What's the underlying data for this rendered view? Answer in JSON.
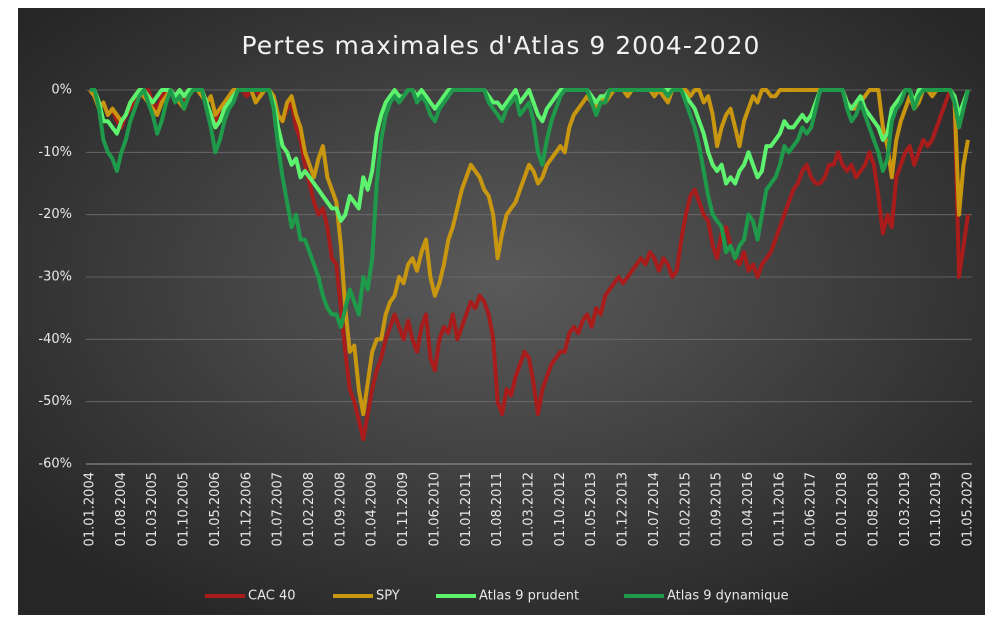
{
  "chart_data": {
    "type": "line",
    "title": "Pertes maximales d'Atlas 9 2004-2020",
    "categories": [
      "01.01.2004",
      null,
      null,
      null,
      null,
      null,
      null,
      "01.08.2004",
      null,
      null,
      null,
      null,
      null,
      null,
      "01.03.2005",
      null,
      null,
      null,
      null,
      null,
      null,
      "01.10.2005",
      null,
      null,
      null,
      null,
      null,
      null,
      "01.05.2006",
      null,
      null,
      null,
      null,
      null,
      null,
      "01.12.2006",
      null,
      null,
      null,
      null,
      null,
      null,
      "01.07.2007",
      null,
      null,
      null,
      null,
      null,
      null,
      "01.02.2008",
      null,
      null,
      null,
      null,
      null,
      null,
      "01.09.2008",
      null,
      null,
      null,
      null,
      null,
      null,
      "01.04.2009",
      null,
      null,
      null,
      null,
      null,
      null,
      "01.11.2009",
      null,
      null,
      null,
      null,
      null,
      null,
      "01.06.2010",
      null,
      null,
      null,
      null,
      null,
      null,
      "01.01.2011",
      null,
      null,
      null,
      null,
      null,
      null,
      "01.08.2011",
      null,
      null,
      null,
      null,
      null,
      null,
      "01.03.2012",
      null,
      null,
      null,
      null,
      null,
      null,
      "01.10.2012",
      null,
      null,
      null,
      null,
      null,
      null,
      "01.05.2013",
      null,
      null,
      null,
      null,
      null,
      null,
      "01.12.2013",
      null,
      null,
      null,
      null,
      null,
      null,
      "01.07.2014",
      null,
      null,
      null,
      null,
      null,
      null,
      "01.02.2015",
      null,
      null,
      null,
      null,
      null,
      null,
      "01.09.2015",
      null,
      null,
      null,
      null,
      null,
      null,
      "01.04.2016",
      null,
      null,
      null,
      null,
      null,
      null,
      "01.11.2016",
      null,
      null,
      null,
      null,
      null,
      null,
      "01.06.2017",
      null,
      null,
      null,
      null,
      null,
      null,
      "01.01.2018",
      null,
      null,
      null,
      null,
      null,
      null,
      "01.08.2018",
      null,
      null,
      null,
      null,
      null,
      null,
      "01.03.2019",
      null,
      null,
      null,
      null,
      null,
      null,
      "01.10.2019",
      null,
      null,
      null,
      null,
      null,
      null,
      "01.05.2020"
    ],
    "series": [
      {
        "name": "CAC 40",
        "color": "#a81c1c",
        "values": [
          0,
          -1,
          -3,
          -2,
          -4,
          -3,
          -5,
          -6,
          -4,
          -3,
          -2,
          -1,
          -1,
          0,
          -2,
          -3,
          -1,
          0,
          0,
          -1,
          0,
          -2,
          -1,
          0,
          0,
          -1,
          -2,
          -4,
          -5,
          -3,
          -2,
          -1,
          0,
          0,
          0,
          -1,
          0,
          0,
          -1,
          0,
          0,
          -2,
          -4,
          -5,
          -3,
          -2,
          -6,
          -8,
          -12,
          -15,
          -18,
          -20,
          -19,
          -22,
          -27,
          -28,
          -35,
          -42,
          -48,
          -50,
          -53,
          -56,
          -52,
          -48,
          -45,
          -43,
          -40,
          -38,
          -36,
          -38,
          -40,
          -37,
          -40,
          -42,
          -38,
          -36,
          -43,
          -45,
          -40,
          -38,
          -39,
          -36,
          -40,
          -38,
          -36,
          -34,
          -35,
          -33,
          -34,
          -36,
          -40,
          -50,
          -52,
          -48,
          -49,
          -46,
          -44,
          -42,
          -43,
          -47,
          -52,
          -48,
          -46,
          -44,
          -43,
          -42,
          -42,
          -39,
          -38,
          -39,
          -37,
          -36,
          -38,
          -35,
          -36,
          -33,
          -32,
          -31,
          -30,
          -31,
          -30,
          -29,
          -28,
          -27,
          -28,
          -26,
          -27,
          -29,
          -27,
          -28,
          -30,
          -29,
          -24,
          -20,
          -17,
          -16,
          -18,
          -20,
          -21,
          -25,
          -27,
          -23,
          -22,
          -25,
          -27,
          -28,
          -26,
          -29,
          -28,
          -30,
          -28,
          -27,
          -26,
          -24,
          -22,
          -20,
          -18,
          -16,
          -15,
          -13,
          -12,
          -14,
          -15,
          -15,
          -14,
          -12,
          -12,
          -10,
          -12,
          -13,
          -12,
          -14,
          -13,
          -12,
          -10,
          -12,
          -17,
          -23,
          -20,
          -22,
          -14,
          -12,
          -10,
          -9,
          -12,
          -10,
          -8,
          -9,
          -8,
          -6,
          -4,
          -2,
          0,
          -2,
          -30,
          -25,
          -20
        ]
      },
      {
        "name": "SPY",
        "color": "#c9970f",
        "values": [
          0,
          -1,
          -3,
          -2,
          -4,
          -3,
          -4,
          -5,
          -4,
          -2,
          -1,
          0,
          -1,
          -2,
          -3,
          -4,
          -2,
          -1,
          0,
          -1,
          -2,
          -3,
          -1,
          0,
          0,
          -1,
          -2,
          -1,
          -4,
          -3,
          -2,
          -1,
          0,
          0,
          0,
          0,
          0,
          -2,
          -1,
          0,
          0,
          -1,
          -4,
          -5,
          -2,
          -1,
          -4,
          -6,
          -10,
          -12,
          -14,
          -11,
          -9,
          -14,
          -16,
          -18,
          -25,
          -35,
          -42,
          -41,
          -48,
          -52,
          -47,
          -42,
          -40,
          -40,
          -36,
          -34,
          -33,
          -30,
          -31,
          -28,
          -27,
          -29,
          -26,
          -24,
          -30,
          -33,
          -31,
          -28,
          -24,
          -22,
          -19,
          -16,
          -14,
          -12,
          -13,
          -14,
          -16,
          -17,
          -20,
          -27,
          -23,
          -20,
          -19,
          -18,
          -16,
          -14,
          -12,
          -13,
          -15,
          -14,
          -12,
          -11,
          -10,
          -9,
          -10,
          -6,
          -4,
          -3,
          -2,
          -1,
          -2,
          -3,
          -1,
          -2,
          -1,
          0,
          0,
          0,
          -1,
          0,
          0,
          0,
          0,
          0,
          -1,
          0,
          -1,
          -2,
          0,
          0,
          0,
          0,
          -1,
          0,
          0,
          -2,
          -1,
          -4,
          -9,
          -6,
          -4,
          -3,
          -6,
          -9,
          -5,
          -3,
          -1,
          -2,
          0,
          0,
          -1,
          -1,
          0,
          0,
          0,
          0,
          0,
          0,
          0,
          0,
          0,
          0,
          0,
          0,
          0,
          0,
          0,
          -2,
          -3,
          -3,
          -2,
          -1,
          0,
          0,
          0,
          -6,
          -9,
          -14,
          -8,
          -5,
          -3,
          -1,
          -3,
          -2,
          0,
          0,
          -1,
          0,
          0,
          0,
          0,
          -2,
          -20,
          -12,
          -8
        ]
      },
      {
        "name": "Atlas 9 prudent",
        "color": "#5ef36e",
        "values": [
          0,
          0,
          -2,
          -5,
          -5,
          -6,
          -7,
          -5,
          -4,
          -2,
          -1,
          0,
          0,
          -1,
          -2,
          -1,
          0,
          0,
          0,
          -1,
          0,
          -1,
          0,
          0,
          0,
          0,
          -2,
          -4,
          -6,
          -5,
          -3,
          -2,
          -1,
          0,
          0,
          0,
          0,
          0,
          0,
          0,
          0,
          -2,
          -6,
          -9,
          -10,
          -12,
          -11,
          -14,
          -13,
          -14,
          -15,
          -16,
          -17,
          -18,
          -19,
          -19,
          -21,
          -20,
          -17,
          -18,
          -19,
          -14,
          -16,
          -13,
          -7,
          -4,
          -2,
          -1,
          0,
          -1,
          -1,
          0,
          0,
          -1,
          0,
          -1,
          -2,
          -3,
          -2,
          -1,
          0,
          0,
          0,
          0,
          0,
          0,
          0,
          0,
          0,
          -1,
          -2,
          -2,
          -3,
          -2,
          -1,
          0,
          -2,
          -1,
          0,
          -2,
          -4,
          -5,
          -3,
          -2,
          -1,
          0,
          0,
          0,
          0,
          0,
          0,
          0,
          -1,
          -2,
          -1,
          -1,
          0,
          0,
          0,
          0,
          0,
          0,
          0,
          0,
          0,
          0,
          0,
          0,
          0,
          0,
          0,
          0,
          0,
          -1,
          -2,
          -3,
          -5,
          -7,
          -10,
          -12,
          -13,
          -12,
          -15,
          -14,
          -15,
          -13,
          -12,
          -10,
          -12,
          -14,
          -13,
          -9,
          -9,
          -8,
          -7,
          -5,
          -6,
          -6,
          -5,
          -4,
          -5,
          -4,
          -2,
          0,
          0,
          0,
          0,
          0,
          0,
          -2,
          -3,
          -2,
          -1,
          -3,
          -4,
          -5,
          -6,
          -8,
          -7,
          -3,
          -2,
          -1,
          0,
          0,
          -2,
          0,
          0,
          0,
          0,
          0,
          0,
          0,
          0,
          -1,
          -4,
          -2,
          0
        ]
      },
      {
        "name": "Atlas 9 dynamique",
        "color": "#1f9a4b",
        "values": [
          0,
          0,
          -3,
          -8,
          -10,
          -11,
          -13,
          -10,
          -8,
          -5,
          -3,
          -1,
          0,
          -2,
          -4,
          -7,
          -5,
          -2,
          0,
          -2,
          -1,
          -3,
          -1,
          0,
          0,
          0,
          -3,
          -6,
          -10,
          -8,
          -5,
          -3,
          -2,
          0,
          0,
          0,
          0,
          0,
          0,
          0,
          0,
          -3,
          -9,
          -14,
          -18,
          -22,
          -20,
          -24,
          -24,
          -26,
          -28,
          -30,
          -33,
          -35,
          -36,
          -36,
          -38,
          -35,
          -32,
          -34,
          -36,
          -30,
          -32,
          -27,
          -15,
          -8,
          -4,
          -2,
          -1,
          -2,
          -1,
          0,
          0,
          -2,
          -1,
          -2,
          -4,
          -5,
          -3,
          -2,
          -1,
          0,
          0,
          0,
          0,
          0,
          0,
          0,
          0,
          -2,
          -3,
          -4,
          -5,
          -3,
          -2,
          -1,
          -4,
          -3,
          -2,
          -5,
          -10,
          -12,
          -8,
          -5,
          -3,
          -1,
          0,
          0,
          0,
          0,
          0,
          0,
          -2,
          -4,
          -2,
          -2,
          0,
          0,
          0,
          0,
          0,
          0,
          0,
          0,
          0,
          0,
          0,
          0,
          0,
          -1,
          0,
          0,
          0,
          -2,
          -4,
          -6,
          -9,
          -13,
          -17,
          -20,
          -21,
          -22,
          -26,
          -25,
          -27,
          -25,
          -24,
          -20,
          -21,
          -24,
          -20,
          -16,
          -15,
          -14,
          -12,
          -9,
          -10,
          -9,
          -8,
          -6,
          -7,
          -6,
          -3,
          0,
          0,
          0,
          0,
          0,
          0,
          -3,
          -5,
          -4,
          -2,
          -4,
          -6,
          -8,
          -10,
          -13,
          -11,
          -5,
          -3,
          -2,
          0,
          0,
          -3,
          -1,
          0,
          0,
          0,
          0,
          0,
          0,
          0,
          -2,
          -6,
          -3,
          0
        ]
      }
    ],
    "ylim": [
      -60,
      0
    ],
    "yticks": [
      {
        "value": 0,
        "label": "0%"
      },
      {
        "value": -10,
        "label": "-10%"
      },
      {
        "value": -20,
        "label": "-20%"
      },
      {
        "value": -30,
        "label": "-30%"
      },
      {
        "value": -40,
        "label": "-40%"
      },
      {
        "value": -50,
        "label": "-50%"
      },
      {
        "value": -60,
        "label": "-60%"
      }
    ],
    "grid": true,
    "legend": "bottom"
  }
}
